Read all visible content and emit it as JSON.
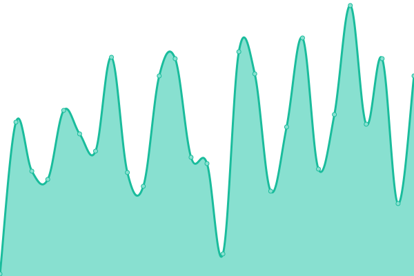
{
  "chart_data": {
    "type": "area",
    "title": "",
    "xlabel": "",
    "ylabel": "",
    "x": [
      0,
      1,
      2,
      3,
      4,
      5,
      6,
      7,
      8,
      9,
      10,
      11,
      12,
      13,
      14,
      15,
      16,
      17,
      18,
      19,
      20,
      21,
      22,
      23,
      24,
      25,
      26
    ],
    "values": [
      3,
      223,
      152,
      140,
      240,
      206,
      181,
      317,
      150,
      130,
      290,
      315,
      172,
      163,
      32,
      325,
      293,
      123,
      216,
      345,
      155,
      234,
      392,
      220,
      315,
      105,
      290
    ],
    "ylim": [
      0,
      400
    ],
    "grid": false,
    "axes_visible": false,
    "curve": "smooth",
    "markers": true,
    "colors": {
      "line": "#1abc9c",
      "fill": "#88e0d0",
      "marker_fill": "#88e0d0",
      "marker_stroke": "#1abc9c"
    }
  }
}
